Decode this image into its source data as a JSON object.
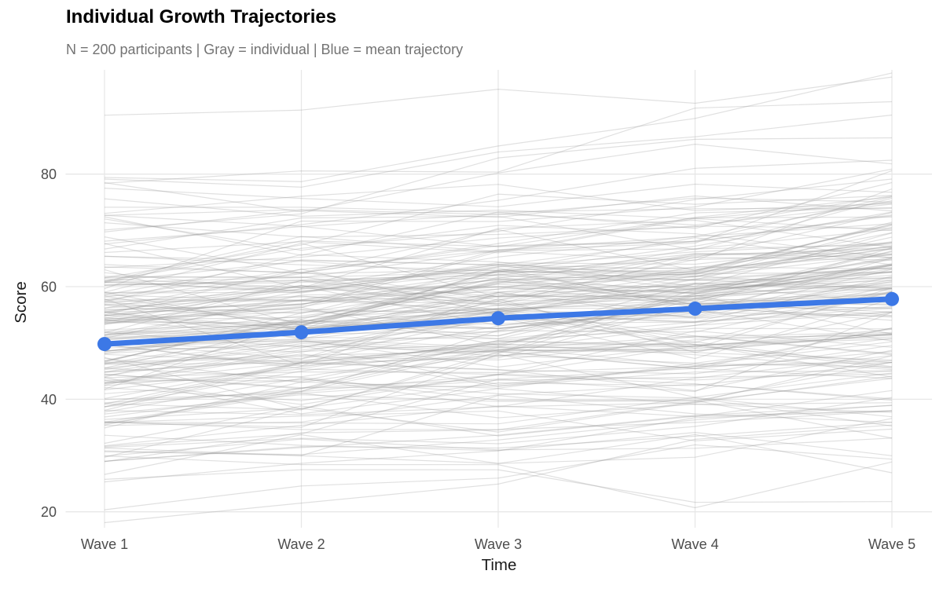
{
  "chart_data": {
    "type": "line",
    "title": "Individual Growth Trajectories",
    "subtitle": "N = 200 participants | Gray = individual | Blue = mean trajectory",
    "xlabel": "Time",
    "ylabel": "Score",
    "categories": [
      "Wave 1",
      "Wave 2",
      "Wave 3",
      "Wave 4",
      "Wave 5"
    ],
    "x_values": [
      1,
      2,
      3,
      4,
      5
    ],
    "y_ticks": [
      20,
      40,
      60,
      80
    ],
    "ylim": [
      17.2,
      98.5
    ],
    "xlim": [
      0.8,
      5.2
    ],
    "grid": "major-only",
    "legend": "none",
    "series": [
      {
        "name": "mean trajectory",
        "role": "mean",
        "values": [
          49.8,
          51.9,
          54.4,
          56.1,
          57.8
        ],
        "color": "#3c78e6",
        "line_width": 7,
        "point_radius": 9
      }
    ],
    "individuals": {
      "role": "individual participant trajectories",
      "count": 200,
      "color": "#999999",
      "opacity": 0.3,
      "line_width": 1.2,
      "seed": 7,
      "intercept_mean": 50,
      "intercept_sd": 12.5,
      "slope_mean": 2,
      "slope_sd": 1.4,
      "noise_sd": 2.5
    },
    "colors": {
      "background": "#ffffff",
      "gridline": "#e7e7e7",
      "title": "#000000",
      "subtitle": "#737373",
      "tick_label": "#4d4d4d",
      "axis_title": "#1a1a1a",
      "mean_line": "#3c78e6",
      "individual_line": "#999999"
    }
  }
}
